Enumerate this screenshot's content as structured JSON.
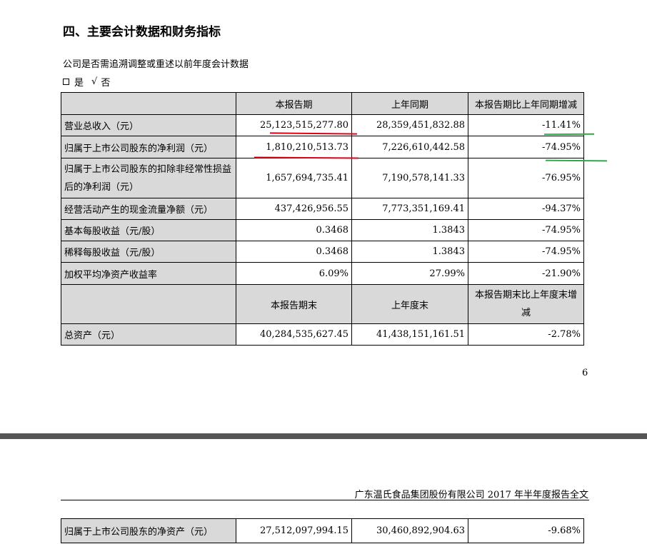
{
  "section": {
    "title": "四、主要会计数据和财务指标",
    "question": "公司是否需追溯调整或重述以前年度会计数据",
    "option_yes": "是",
    "option_no_mark": "√",
    "option_no": "否"
  },
  "table": {
    "header1": {
      "blank": "",
      "current": "本报告期",
      "prior": "上年同期",
      "change": "本报告期比上年同期增减"
    },
    "rows1": [
      {
        "label": "营业总收入（元）",
        "current": "25,123,515,277.80",
        "prior": "28,359,451,832.88",
        "change": "-11.41%"
      },
      {
        "label": "归属于上市公司股东的净利润（元）",
        "current": "1,810,210,513.73",
        "prior": "7,226,610,442.58",
        "change": "-74.95%"
      },
      {
        "label": "归属于上市公司股东的扣除非经常性损益后的净利润（元）",
        "current": "1,657,694,735.41",
        "prior": "7,190,578,141.33",
        "change": "-76.95%"
      },
      {
        "label": "经营活动产生的现金流量净额（元）",
        "current": "437,426,956.55",
        "prior": "7,773,351,169.41",
        "change": "-94.37%"
      },
      {
        "label": "基本每股收益（元/股）",
        "current": "0.3468",
        "prior": "1.3843",
        "change": "-74.95%"
      },
      {
        "label": "稀释每股收益（元/股）",
        "current": "0.3468",
        "prior": "1.3843",
        "change": "-74.95%"
      },
      {
        "label": "加权平均净资产收益率",
        "current": "6.09%",
        "prior": "27.99%",
        "change": "-21.90%"
      }
    ],
    "header2": {
      "blank": "",
      "current": "本报告期末",
      "prior": "上年度末",
      "change": "本报告期末比上年度末增减"
    },
    "rows2": [
      {
        "label": "总资产（元）",
        "current": "40,284,535,627.45",
        "prior": "41,438,151,161.51",
        "change": "-2.78%"
      }
    ],
    "continued_rows": [
      {
        "label": "归属于上市公司股东的净资产（元）",
        "current": "27,512,097,994.15",
        "prior": "30,460,892,904.63",
        "change": "-9.68%"
      }
    ]
  },
  "page_number": "6",
  "report_header": "广东温氏食品集团股份有限公司 2017 年半年度报告全文",
  "annotation_colors": {
    "red_underline": "#e0001a",
    "green_underline": "#2ea84a",
    "header_fill": "#d9d9d9",
    "page_gap": "#555555"
  }
}
